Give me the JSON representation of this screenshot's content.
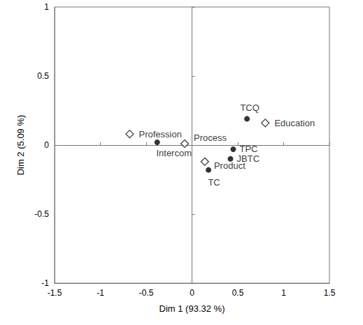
{
  "chart_data": {
    "type": "scatter",
    "x_label": "Dim 1 (93.32 %)",
    "y_label": "Dim 2 (5.09 %)",
    "xlim": [
      -1.5,
      1.5
    ],
    "xticks": [
      -1.5,
      -1,
      -0.5,
      0,
      0.5,
      1,
      1.5
    ],
    "ylim": [
      -1,
      1
    ],
    "yticks": [
      -1,
      -0.5,
      0,
      0.5,
      1
    ],
    "grid": false,
    "series": [
      {
        "marker": "circle",
        "color": "#000000",
        "labels": [
          "TCQ",
          "Intercom",
          "TPC",
          "JBTC",
          "TC"
        ],
        "x": [
          0.6,
          -0.38,
          0.45,
          0.42,
          0.18
        ],
        "y": [
          0.19,
          0.02,
          -0.03,
          -0.1,
          -0.18
        ]
      },
      {
        "marker": "open_diamond",
        "color": "#000000",
        "labels": [
          "Education",
          "Profession",
          "Process",
          "Product"
        ],
        "x": [
          0.8,
          -0.68,
          -0.08,
          0.14
        ],
        "y": [
          0.16,
          0.08,
          0.01,
          -0.12
        ]
      }
    ]
  }
}
